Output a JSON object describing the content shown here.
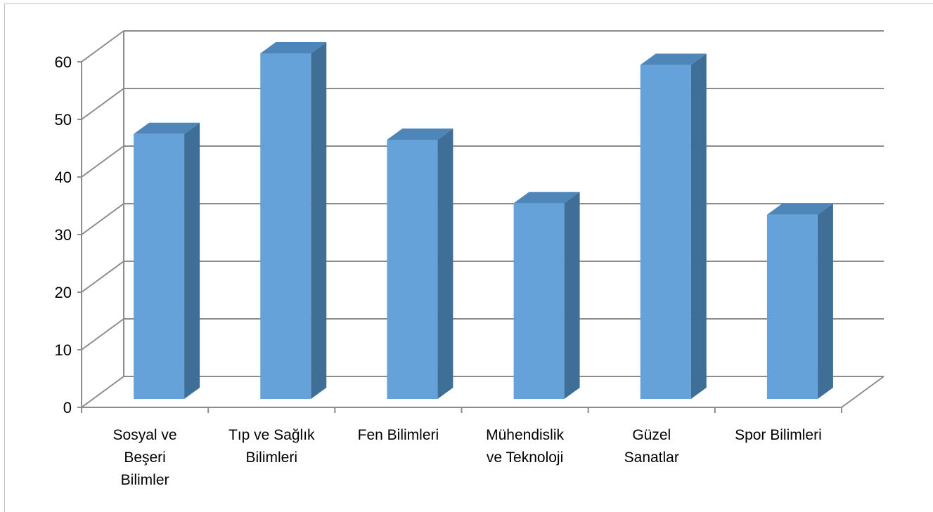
{
  "chart_data": {
    "type": "bar",
    "style": "3d-column",
    "categories": [
      [
        "Sosyal ve",
        "Beşeri",
        "Bilimler"
      ],
      [
        "Tıp ve Sağlık",
        "Bilimleri"
      ],
      [
        "Fen Bilimleri"
      ],
      [
        "Mühendislik",
        "ve Teknoloji"
      ],
      [
        "Güzel",
        "Sanatlar"
      ],
      [
        "Spor Bilimleri"
      ]
    ],
    "values": [
      46,
      60,
      45,
      34,
      58,
      32
    ],
    "ylim": [
      0,
      60
    ],
    "yticks": [
      "0",
      "10",
      "20",
      "30",
      "40",
      "50",
      "60"
    ],
    "grid": true,
    "legend": "none",
    "colors": {
      "bar_front": "#65a2d9",
      "bar_side": "#3f6f96",
      "bar_top": "#4f86b9",
      "grid": "#8c8c8c"
    }
  }
}
